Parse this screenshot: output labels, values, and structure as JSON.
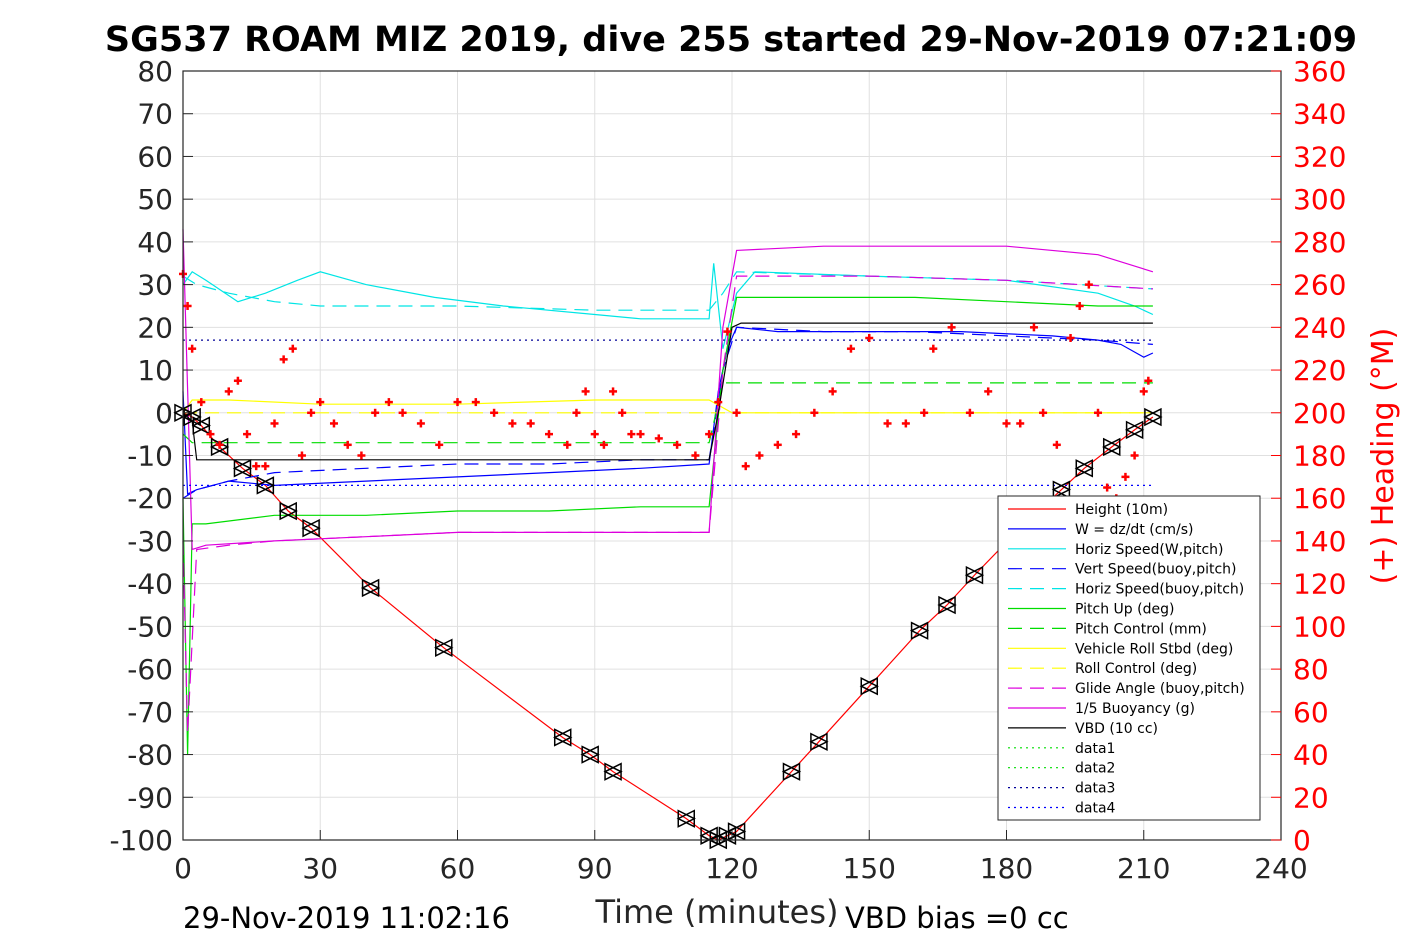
{
  "chart_data": {
    "type": "line",
    "title": "SG537 ROAM MIZ 2019, dive 255 started 29-Nov-2019 07:21:09",
    "xlabel": "Time (minutes)",
    "ylabel": "",
    "ylabel_right": "(+) Heading (°M)",
    "xlim": [
      0,
      240
    ],
    "ylim": [
      -100,
      80
    ],
    "ylim_right": [
      0,
      360
    ],
    "x_ticks": [
      0,
      30,
      60,
      90,
      120,
      150,
      180,
      210,
      240
    ],
    "y_ticks": [
      80,
      70,
      60,
      50,
      40,
      30,
      20,
      10,
      0,
      -10,
      -20,
      -30,
      -40,
      -50,
      -60,
      -70,
      -80,
      -90,
      -100
    ],
    "y_ticks_right": [
      360,
      340,
      320,
      300,
      280,
      260,
      240,
      220,
      200,
      180,
      160,
      140,
      120,
      100,
      80,
      60,
      40,
      20,
      0
    ],
    "grid": true,
    "legend_position": "bottom-right",
    "footer_left": "29-Nov-2019 11:02:16",
    "footer_right": "VBD bias =0 cc",
    "series": [
      {
        "name": "Height (10m)",
        "color": "#ff0000",
        "style": "solid",
        "marker": "triangle",
        "x": [
          0,
          2,
          4,
          8,
          13,
          18,
          23,
          28,
          41,
          57,
          83,
          89,
          94,
          110,
          115,
          117,
          119,
          121,
          133,
          139,
          150,
          161,
          167,
          173,
          183,
          192,
          197,
          203,
          208,
          212
        ],
        "y": [
          0,
          -1,
          -3,
          -8,
          -13,
          -17,
          -23,
          -27,
          -41,
          -55,
          -76,
          -80,
          -84,
          -95,
          -99,
          -100,
          -99,
          -98,
          -84,
          -77,
          -64,
          -51,
          -45,
          -38,
          -27,
          -18,
          -13,
          -8,
          -4,
          -1
        ]
      },
      {
        "name": "W = dz/dt (cm/s)",
        "color": "#0000ff",
        "style": "solid",
        "x": [
          0,
          1,
          3,
          10,
          20,
          40,
          60,
          80,
          100,
          115,
          117,
          119,
          121,
          130,
          150,
          170,
          190,
          200,
          205,
          210,
          212
        ],
        "y": [
          5,
          -19,
          -18,
          -16,
          -17,
          -16,
          -15,
          -14,
          -13,
          -12,
          5,
          15,
          20,
          19,
          19,
          19,
          18,
          17,
          16,
          13,
          14
        ]
      },
      {
        "name": "Horiz Speed(W,pitch)",
        "color": "#00e5e5",
        "style": "solid",
        "x": [
          0,
          2,
          5,
          12,
          18,
          25,
          30,
          40,
          55,
          70,
          90,
          100,
          115,
          116,
          118,
          121,
          125,
          150,
          180,
          200,
          208,
          212
        ],
        "y": [
          30,
          33,
          31,
          26,
          28,
          31,
          33,
          30,
          27,
          25,
          23,
          22,
          22,
          35,
          15,
          28,
          33,
          32,
          31,
          28,
          25,
          23
        ]
      },
      {
        "name": "Vert Speed(buoy,pitch)",
        "color": "#0000ff",
        "style": "dashed",
        "x": [
          0,
          3,
          10,
          20,
          40,
          60,
          80,
          100,
          115,
          118,
          121,
          140,
          160,
          180,
          200,
          212
        ],
        "y": [
          -20,
          -18,
          -16,
          -14,
          -13,
          -12,
          -12,
          -11,
          -11,
          10,
          20,
          19,
          19,
          18,
          17,
          16
        ]
      },
      {
        "name": "Horiz Speed(buoy,pitch)",
        "color": "#00e5e5",
        "style": "dashed",
        "x": [
          0,
          3,
          10,
          20,
          30,
          60,
          90,
          115,
          118,
          121,
          150,
          180,
          212
        ],
        "y": [
          32,
          30,
          28,
          26,
          25,
          25,
          24,
          24,
          28,
          33,
          32,
          31,
          29
        ]
      },
      {
        "name": "Pitch Up (deg)",
        "color": "#00dd00",
        "style": "solid",
        "x": [
          0,
          1,
          2,
          5,
          20,
          40,
          60,
          80,
          100,
          115,
          118,
          121,
          140,
          160,
          180,
          200,
          212
        ],
        "y": [
          -20,
          -80,
          -26,
          -26,
          -24,
          -24,
          -23,
          -23,
          -22,
          -22,
          10,
          27,
          27,
          27,
          26,
          25,
          25
        ]
      },
      {
        "name": "Pitch Control (mm)",
        "color": "#00dd00",
        "style": "dashed",
        "x": [
          0,
          2,
          115,
          118,
          212
        ],
        "y": [
          -5,
          -7,
          -7,
          7,
          7
        ]
      },
      {
        "name": "Vehicle Roll Stbd (deg)",
        "color": "#ffff00",
        "style": "solid",
        "x": [
          0,
          2,
          10,
          30,
          60,
          90,
          115,
          120,
          150,
          180,
          212
        ],
        "y": [
          0,
          3,
          3,
          2,
          2,
          3,
          3,
          0,
          0,
          0,
          0
        ]
      },
      {
        "name": "Roll Control (deg)",
        "color": "#ffff00",
        "style": "dashed",
        "x": [
          0,
          212
        ],
        "y": [
          0,
          0
        ]
      },
      {
        "name": "Glide Angle (buoy,pitch)",
        "color": "#dd00dd",
        "style": "dashed",
        "x": [
          0,
          1,
          3,
          10,
          20,
          40,
          60,
          80,
          100,
          115,
          118,
          121,
          150,
          180,
          212
        ],
        "y": [
          -30,
          -75,
          -32,
          -31,
          -30,
          -29,
          -28,
          -28,
          -28,
          -28,
          10,
          32,
          32,
          31,
          29
        ]
      },
      {
        "name": "1/5 Buoyancy (g)",
        "color": "#dd00dd",
        "style": "solid",
        "x": [
          0,
          2,
          5,
          20,
          40,
          60,
          80,
          100,
          115,
          118,
          121,
          140,
          160,
          180,
          200,
          212
        ],
        "y": [
          43,
          -32,
          -31,
          -30,
          -29,
          -28,
          -28,
          -28,
          -28,
          20,
          38,
          39,
          39,
          39,
          37,
          33
        ]
      },
      {
        "name": "VBD (10 cc)",
        "color": "#000000",
        "style": "solid",
        "x": [
          0,
          2,
          3,
          115,
          117,
          120,
          122,
          212
        ],
        "y": [
          0,
          -2,
          -11,
          -11,
          0,
          20,
          21,
          21
        ]
      },
      {
        "name": "data1",
        "color": "#00dd00",
        "style": "dotted",
        "x": [],
        "y": []
      },
      {
        "name": "data2",
        "color": "#00dd00",
        "style": "dotted",
        "x": [],
        "y": []
      },
      {
        "name": "data3",
        "color": "#000099",
        "style": "dotted",
        "x": [
          0,
          212
        ],
        "y": [
          17,
          17
        ]
      },
      {
        "name": "data4",
        "color": "#0000ff",
        "style": "dotted",
        "x": [
          0,
          212
        ],
        "y": [
          -17,
          -17
        ]
      }
    ],
    "heading": {
      "name": "(+) Heading (°M)",
      "color": "#ff0000",
      "marker": "plus",
      "axis": "right",
      "x": [
        0,
        1,
        2,
        4,
        6,
        8,
        10,
        12,
        14,
        16,
        18,
        20,
        22,
        24,
        26,
        28,
        30,
        33,
        36,
        39,
        42,
        45,
        48,
        52,
        56,
        60,
        64,
        68,
        72,
        76,
        80,
        84,
        86,
        88,
        90,
        92,
        94,
        96,
        98,
        100,
        104,
        108,
        112,
        115,
        117,
        119,
        121,
        123,
        126,
        130,
        134,
        138,
        142,
        146,
        150,
        154,
        158,
        162,
        164,
        168,
        172,
        176,
        180,
        183,
        186,
        188,
        191,
        194,
        196,
        198,
        200,
        202,
        204,
        206,
        208,
        210,
        211
      ],
      "y": [
        265,
        250,
        230,
        205,
        190,
        185,
        210,
        215,
        190,
        175,
        175,
        195,
        225,
        230,
        180,
        200,
        205,
        195,
        185,
        180,
        200,
        205,
        200,
        195,
        185,
        205,
        205,
        200,
        195,
        195,
        190,
        185,
        200,
        210,
        190,
        185,
        210,
        200,
        190,
        190,
        188,
        185,
        180,
        190,
        205,
        238,
        200,
        175,
        180,
        185,
        190,
        200,
        210,
        230,
        235,
        195,
        195,
        200,
        230,
        240,
        200,
        210,
        195,
        195,
        240,
        200,
        185,
        235,
        250,
        260,
        200,
        165,
        160,
        170,
        180,
        210,
        215
      ]
    }
  }
}
